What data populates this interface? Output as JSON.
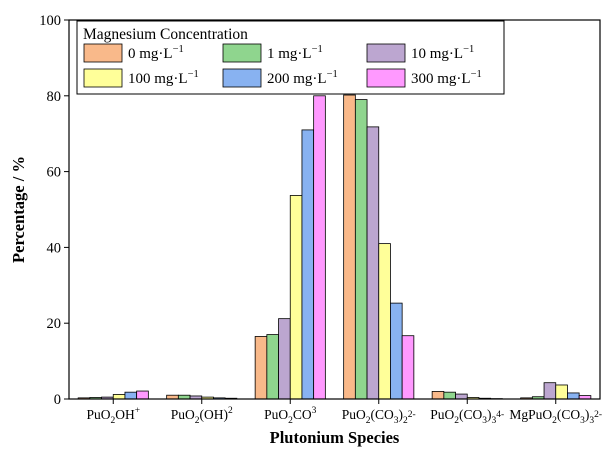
{
  "chart_data": {
    "type": "bar",
    "title": "",
    "xlabel": "Plutonium Species",
    "ylabel": "Percentage / %",
    "ylim": [
      0,
      100
    ],
    "yticks": [
      0,
      20,
      40,
      60,
      80,
      100
    ],
    "grid": false,
    "legend_position": "top-left",
    "legend_title": "Magnesium Concentration",
    "categories": [
      [
        "PuO",
        "2",
        "OH",
        "+"
      ],
      [
        "PuO",
        "2",
        "(OH)",
        "2"
      ],
      [
        "PuO",
        "2",
        "CO",
        "3"
      ],
      [
        "PuO",
        "2",
        "(CO",
        "3",
        ")",
        "2",
        "",
        "2-"
      ],
      [
        "PuO",
        "2",
        "(CO",
        "3",
        ")",
        "3",
        "",
        "4-"
      ],
      [
        "MgPuO",
        "2",
        "(CO",
        "3",
        ")",
        "3",
        "",
        "2-"
      ]
    ],
    "series": [
      {
        "name": "0 mg·L",
        "unit_exp": "−1",
        "color": "#F9B98A",
        "values": [
          0.3,
          1.0,
          16.5,
          80.2,
          2.0,
          0.3
        ]
      },
      {
        "name": "1 mg·L",
        "unit_exp": "−1",
        "color": "#8FD58E",
        "values": [
          0.4,
          1.0,
          17.0,
          79.0,
          1.8,
          0.6
        ]
      },
      {
        "name": "10 mg·L",
        "unit_exp": "−1",
        "color": "#BCA6D0",
        "values": [
          0.5,
          0.8,
          21.2,
          71.8,
          1.3,
          4.3
        ]
      },
      {
        "name": "100 mg·L",
        "unit_exp": "−1",
        "color": "#FFFF99",
        "values": [
          1.2,
          0.5,
          53.7,
          41.0,
          0.4,
          3.7
        ]
      },
      {
        "name": "200 mg·L",
        "unit_exp": "−1",
        "color": "#88B2F1",
        "values": [
          1.8,
          0.3,
          71.0,
          25.3,
          0.2,
          1.6
        ]
      },
      {
        "name": "300 mg·L",
        "unit_exp": "−1",
        "color": "#FF99FF",
        "values": [
          2.1,
          0.2,
          80.0,
          16.7,
          0.1,
          0.9
        ]
      }
    ]
  }
}
